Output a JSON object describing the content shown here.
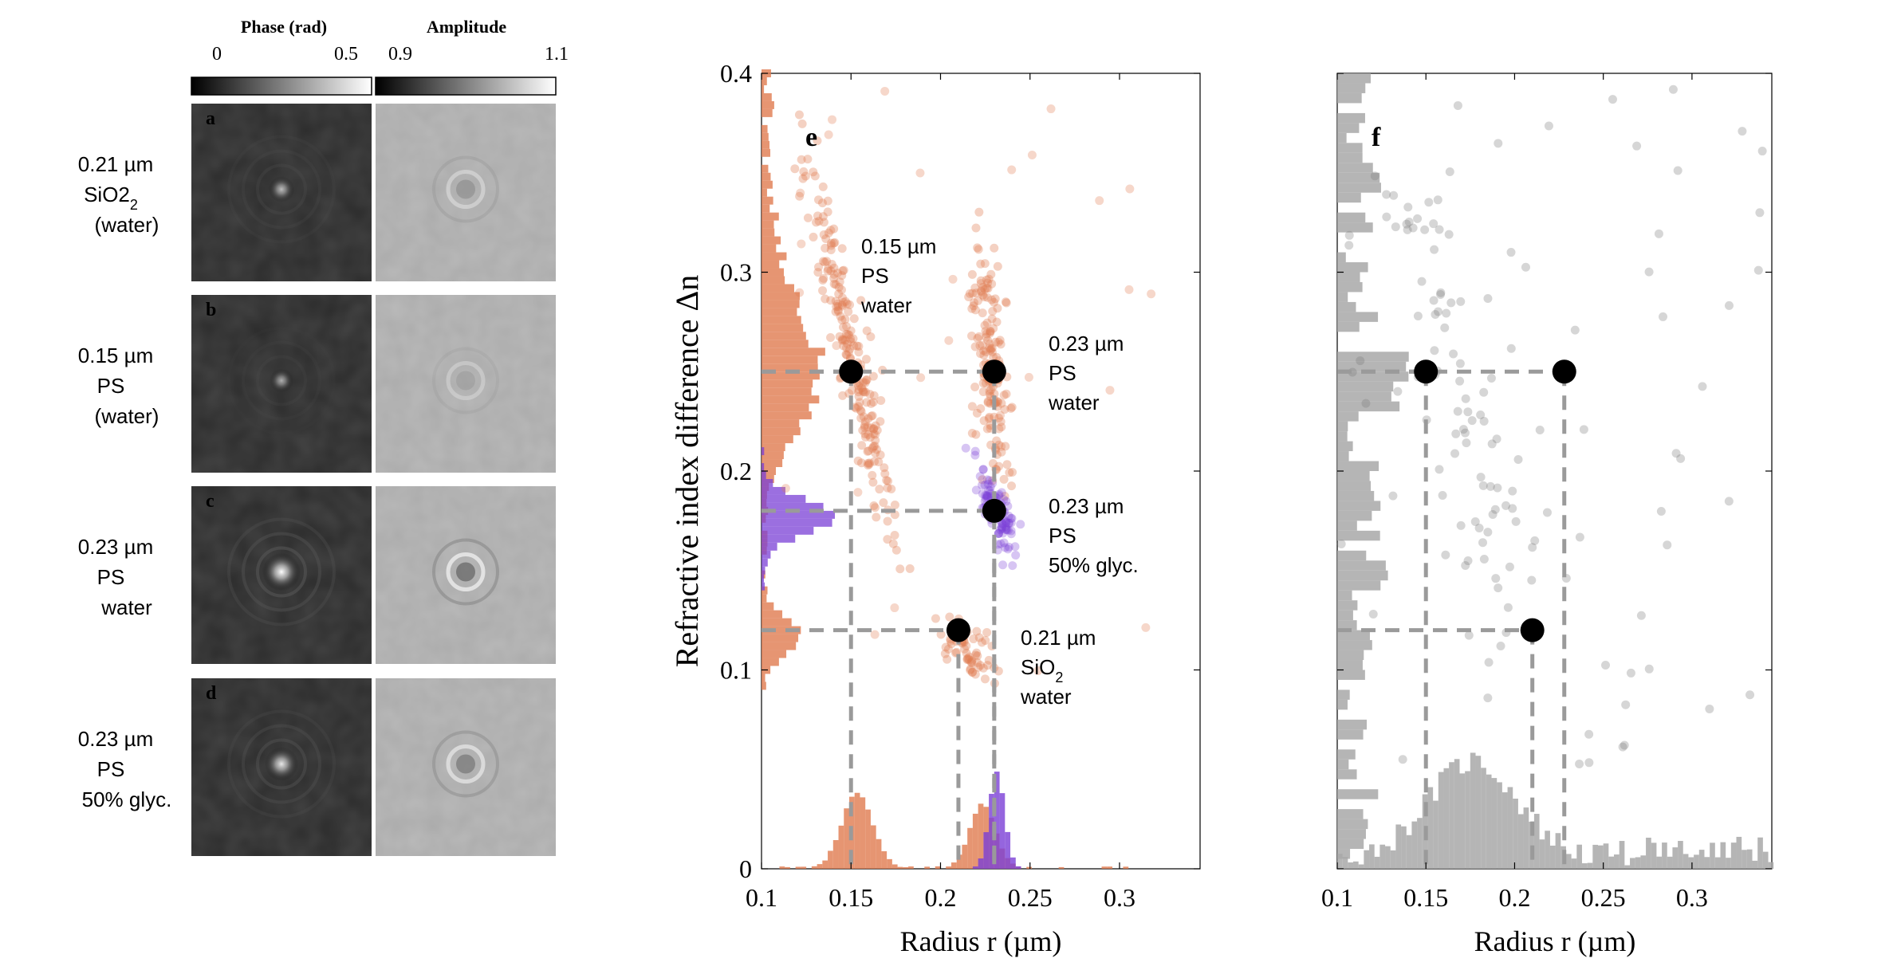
{
  "colors": {
    "orange": "#e07a4f",
    "purple": "#7a3fd6",
    "gray": "#a8a8a8",
    "black": "#000000"
  },
  "left_panel": {
    "colorbar_phase": {
      "title": "Phase (rad)",
      "min_label": "0",
      "max_label": "0.5"
    },
    "colorbar_amplitude": {
      "title": "Amplitude",
      "min_label": "0.9",
      "max_label": "1.1"
    },
    "rows": [
      {
        "letter": "a",
        "label": [
          "0.21 µm",
          "SiO2",
          "(water)"
        ],
        "label_sub": "2",
        "phase_peak": 0.45,
        "ring": 0.25
      },
      {
        "letter": "b",
        "label": [
          "0.15 µm",
          "PS",
          "(water)"
        ],
        "phase_peak": 0.35,
        "ring": 0.15
      },
      {
        "letter": "c",
        "label": [
          "0.23 µm",
          "PS",
          "water"
        ],
        "phase_peak": 1.0,
        "ring": 0.6
      },
      {
        "letter": "d",
        "label": [
          "0.23 µm",
          "PS",
          "50% glyc."
        ],
        "phase_peak": 0.8,
        "ring": 0.45
      }
    ]
  },
  "chart_data": [
    {
      "panel": "e",
      "type": "scatter",
      "xlabel": "Radius r (µm)",
      "ylabel": "Refractive index difference Δn",
      "xlim": [
        0.1,
        0.345
      ],
      "ylim": [
        0,
        0.4
      ],
      "xticks": [
        "0.1",
        "0.15",
        "0.2",
        "0.25",
        "0.3"
      ],
      "yticks": [
        "0",
        "0.1",
        "0.2",
        "0.3",
        "0.4"
      ],
      "clusters": [
        {
          "name": "0.15 µm PS water",
          "color": "orange",
          "x_center": 0.15,
          "y_center": 0.25,
          "spread": "steep"
        },
        {
          "name": "0.23 µm PS water",
          "color": "orange",
          "x_center": 0.228,
          "y_center": 0.25,
          "spread": "steep"
        },
        {
          "name": "0.23 µm PS 50% glyc.",
          "color": "purple",
          "x_center": 0.23,
          "y_center": 0.18,
          "spread": "steep"
        },
        {
          "name": "0.21 µm SiO2 water",
          "color": "orange",
          "x_center": 0.21,
          "y_center": 0.12,
          "spread": "compact"
        }
      ],
      "reference_points": [
        {
          "x": 0.15,
          "y": 0.25
        },
        {
          "x": 0.23,
          "y": 0.25
        },
        {
          "x": 0.23,
          "y": 0.18
        },
        {
          "x": 0.21,
          "y": 0.12
        }
      ],
      "annotations": [
        {
          "lines": [
            "0.15 µm",
            "PS",
            "water"
          ]
        },
        {
          "lines": [
            "0.23 µm",
            "PS",
            "water"
          ]
        },
        {
          "lines": [
            "0.23 µm",
            "PS",
            "50% glyc."
          ]
        },
        {
          "lines": [
            "0.21 µm",
            "SiO2",
            "water"
          ],
          "sub_line": 1
        }
      ]
    },
    {
      "panel": "f",
      "type": "scatter",
      "xlabel": "Radius r (µm)",
      "xlim": [
        0.1,
        0.345
      ],
      "ylim": [
        0,
        0.4
      ],
      "xticks": [
        "0.1",
        "0.15",
        "0.2",
        "0.25",
        "0.3"
      ],
      "color": "gray",
      "reference_points": [
        {
          "x": 0.15,
          "y": 0.25
        },
        {
          "x": 0.228,
          "y": 0.25
        },
        {
          "x": 0.21,
          "y": 0.12
        }
      ]
    }
  ]
}
